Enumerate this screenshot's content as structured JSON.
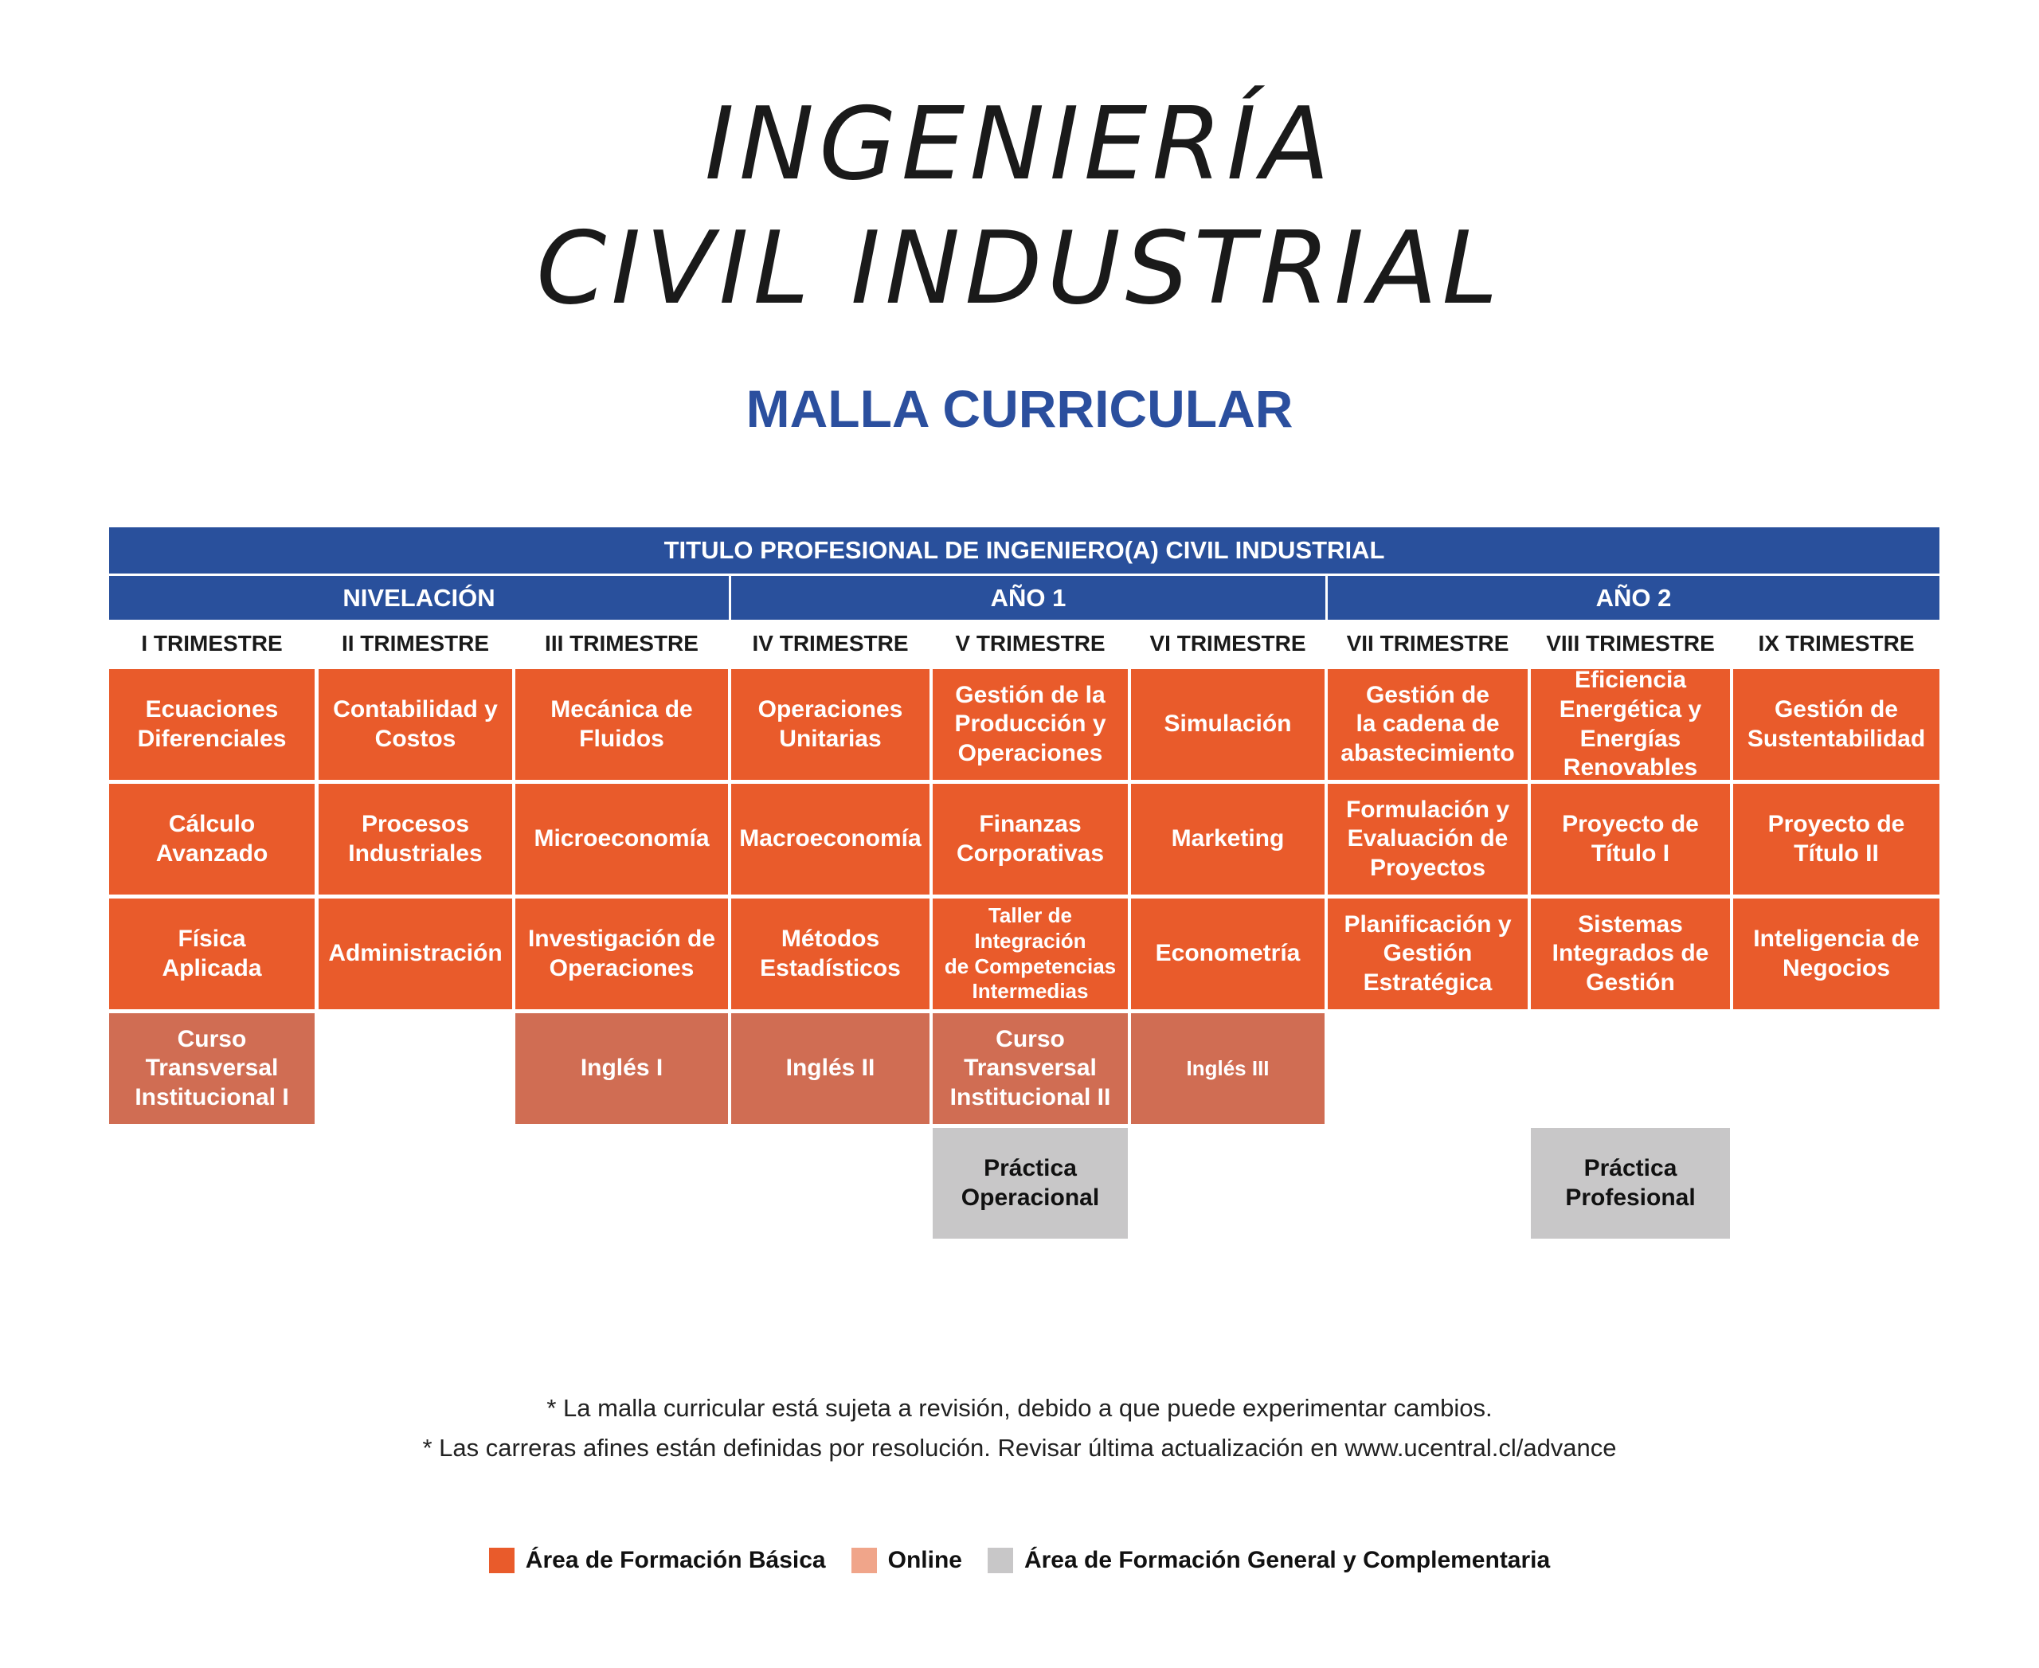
{
  "header": {
    "title_line1": "INGENIERÍA",
    "title_line2": "CIVIL INDUSTRIAL",
    "subtitle": "MALLA CURRICULAR"
  },
  "table": {
    "degree": "TITULO PROFESIONAL DE INGENIERO(A) CIVIL INDUSTRIAL",
    "groups": [
      "NIVELACIÓN",
      "AÑO 1",
      "AÑO 2"
    ],
    "trimesters": [
      "I TRIMESTRE",
      "II TRIMESTRE",
      "III TRIMESTRE",
      "IV TRIMESTRE",
      "V TRIMESTRE",
      "VI TRIMESTRE",
      "VII TRIMESTRE",
      "VIII TRIMESTRE",
      "IX TRIMESTRE"
    ],
    "courses": [
      [
        "Ecuaciones\nDiferenciales",
        "Contabilidad y\nCostos",
        "Mecánica de Fluidos",
        "Operaciones\nUnitarias",
        "Gestión de la\nProducción y\nOperaciones",
        "Simulación",
        "Gestión de\nla cadena de\nabastecimiento",
        "Eficiencia\nEnergética y\nEnergías\nRenovables",
        "Gestión de\nSustentabilidad"
      ],
      [
        "Cálculo\nAvanzado",
        "Procesos\nIndustriales",
        "Microeconomía",
        "Macroeconomía",
        "Finanzas\nCorporativas",
        "Marketing",
        "Formulación y\nEvaluación de\nProyectos",
        "Proyecto de\nTítulo I",
        "Proyecto de\nTítulo II"
      ],
      [
        "Física\nAplicada",
        "Administración",
        "Investigación de\nOperaciones",
        "Métodos\nEstadísticos",
        "Taller de Integración\nde Competencias\nIntermedias",
        "Econometría",
        "Planificación y\nGestión\nEstratégica",
        "Sistemas\nIntegrados de\nGestión",
        "Inteligencia de\nNegocios"
      ],
      [
        "Curso\nTransversal\nInstitucional I",
        "",
        "Inglés I",
        "Inglés II",
        "Curso\nTransversal\nInstitucional II",
        "Inglés III",
        "",
        "",
        ""
      ],
      [
        "",
        "",
        "",
        "",
        "Práctica\nOperacional",
        "",
        "",
        "Práctica\nProfesional",
        ""
      ]
    ]
  },
  "notes": [
    "* La  malla curricular está sujeta a revisión, debido a que puede experimentar cambios.",
    "* Las carreras afines están definidas por resolución. Revisar última actualización en www.ucentral.cl/advance"
  ],
  "legend": [
    {
      "label": "Área de Formación Básica",
      "color": "#e95b2b"
    },
    {
      "label": "Online",
      "color": "#f0a58a"
    },
    {
      "label": "Área de Formación General y Complementaria",
      "color": "#c8c7c8"
    }
  ],
  "colors": {
    "header_blue": "#29509c",
    "subtitle_blue": "#2b4f9e",
    "basic": "#e95b2b",
    "online_cell": "#d06d53",
    "general": "#c8c7c8"
  }
}
